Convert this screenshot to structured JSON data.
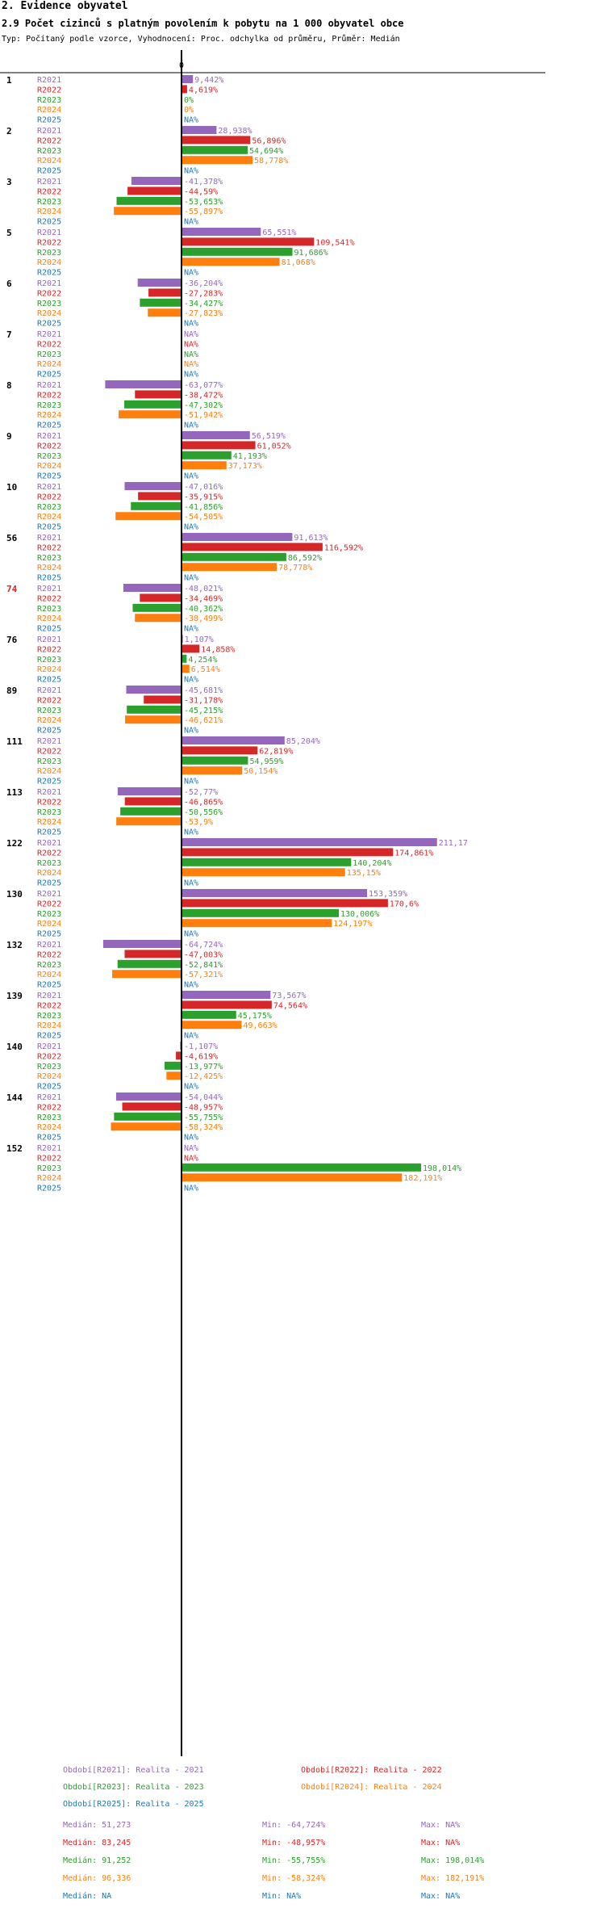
{
  "header": {
    "section": "2. Evidence obyvatel",
    "title": "2.9 Počet cizinců s platným povolením k pobytu na 1 000 obyvatel obce",
    "subtitle": "Typ: Počítaný podle vzorce, Vyhodnocení: Proc. odchylka od průměru, Průměr: Medián"
  },
  "colors": {
    "R2021": "#9467bd",
    "R2022": "#d62728",
    "R2023": "#2ca02c",
    "R2024": "#ff7f0e",
    "R2025": "#1f77b4",
    "highlight": "#d62728"
  },
  "chart_data": {
    "type": "bar",
    "orientation": "horizontal",
    "axis_zero_label": "0",
    "xlim": [
      -70,
      215
    ],
    "series_names": [
      "R2021",
      "R2022",
      "R2023",
      "R2024",
      "R2025"
    ],
    "groups": [
      {
        "id": "1",
        "highlight": false,
        "values": [
          9.442,
          4.619,
          0,
          0,
          null
        ],
        "labels": [
          "9,442%",
          "4,619%",
          "0%",
          "0%",
          "NA%"
        ]
      },
      {
        "id": "2",
        "highlight": false,
        "values": [
          28.938,
          56.896,
          54.694,
          58.778,
          null
        ],
        "labels": [
          "28,938%",
          "56,896%",
          "54,694%",
          "58,778%",
          "NA%"
        ]
      },
      {
        "id": "3",
        "highlight": false,
        "values": [
          -41.378,
          -44.59,
          -53.653,
          -55.897,
          null
        ],
        "labels": [
          "-41,378%",
          "-44,59%",
          "-53,653%",
          "-55,897%",
          "NA%"
        ]
      },
      {
        "id": "5",
        "highlight": false,
        "values": [
          65.551,
          109.541,
          91.686,
          81.068,
          null
        ],
        "labels": [
          "65,551%",
          "109,541%",
          "91,686%",
          "81,068%",
          "NA%"
        ]
      },
      {
        "id": "6",
        "highlight": false,
        "values": [
          -36.204,
          -27.283,
          -34.427,
          -27.823,
          null
        ],
        "labels": [
          "-36,204%",
          "-27,283%",
          "-34,427%",
          "-27,823%",
          "NA%"
        ]
      },
      {
        "id": "7",
        "highlight": false,
        "values": [
          null,
          null,
          null,
          null,
          null
        ],
        "labels": [
          "NA%",
          "NA%",
          "NA%",
          "NA%",
          "NA%"
        ]
      },
      {
        "id": "8",
        "highlight": false,
        "values": [
          -63.077,
          -38.472,
          -47.302,
          -51.942,
          null
        ],
        "labels": [
          "-63,077%",
          "-38,472%",
          "-47,302%",
          "-51,942%",
          "NA%"
        ]
      },
      {
        "id": "9",
        "highlight": false,
        "values": [
          56.519,
          61.052,
          41.193,
          37.173,
          null
        ],
        "labels": [
          "56,519%",
          "61,052%",
          "41,193%",
          "37,173%",
          "NA%"
        ]
      },
      {
        "id": "10",
        "highlight": false,
        "values": [
          -47.016,
          -35.915,
          -41.856,
          -54.505,
          null
        ],
        "labels": [
          "-47,016%",
          "-35,915%",
          "-41,856%",
          "-54,505%",
          "NA%"
        ]
      },
      {
        "id": "56",
        "highlight": false,
        "values": [
          91.613,
          116.592,
          86.592,
          78.778,
          null
        ],
        "labels": [
          "91,613%",
          "116,592%",
          "86,592%",
          "78,778%",
          "NA%"
        ]
      },
      {
        "id": "74",
        "highlight": true,
        "values": [
          -48.021,
          -34.469,
          -40.362,
          -38.499,
          null
        ],
        "labels": [
          "-48,021%",
          "-34,469%",
          "-40,362%",
          "-38,499%",
          "NA%"
        ]
      },
      {
        "id": "76",
        "highlight": false,
        "values": [
          1.107,
          14.858,
          4.254,
          6.514,
          null
        ],
        "labels": [
          "1,107%",
          "14,858%",
          "4,254%",
          "6,514%",
          "NA%"
        ]
      },
      {
        "id": "89",
        "highlight": false,
        "values": [
          -45.681,
          -31.178,
          -45.215,
          -46.621,
          null
        ],
        "labels": [
          "-45,681%",
          "-31,178%",
          "-45,215%",
          "-46,621%",
          "NA%"
        ]
      },
      {
        "id": "111",
        "highlight": false,
        "values": [
          85.204,
          62.819,
          54.959,
          50.154,
          null
        ],
        "labels": [
          "85,204%",
          "62,819%",
          "54,959%",
          "50,154%",
          "NA%"
        ]
      },
      {
        "id": "113",
        "highlight": false,
        "values": [
          -52.77,
          -46.865,
          -50.556,
          -53.9,
          null
        ],
        "labels": [
          "-52,77%",
          "-46,865%",
          "-50,556%",
          "-53,9%",
          "NA%"
        ]
      },
      {
        "id": "122",
        "highlight": false,
        "values": [
          211.17,
          174.861,
          140.204,
          135.15,
          null
        ],
        "labels": [
          "211,17",
          "174,861%",
          "140,204%",
          "135,15%",
          "NA%"
        ]
      },
      {
        "id": "130",
        "highlight": false,
        "values": [
          153.359,
          170.6,
          130.006,
          124.197,
          null
        ],
        "labels": [
          "153,359%",
          "170,6%",
          "130,006%",
          "124,197%",
          "NA%"
        ]
      },
      {
        "id": "132",
        "highlight": false,
        "values": [
          -64.724,
          -47.003,
          -52.841,
          -57.321,
          null
        ],
        "labels": [
          "-64,724%",
          "-47,003%",
          "-52,841%",
          "-57,321%",
          "NA%"
        ]
      },
      {
        "id": "139",
        "highlight": false,
        "values": [
          73.567,
          74.564,
          45.175,
          49.663,
          null
        ],
        "labels": [
          "73,567%",
          "74,564%",
          "45,175%",
          "49,663%",
          "NA%"
        ]
      },
      {
        "id": "140",
        "highlight": false,
        "values": [
          -1.107,
          -4.619,
          -13.977,
          -12.425,
          null
        ],
        "labels": [
          "-1,107%",
          "-4,619%",
          "-13,977%",
          "-12,425%",
          "NA%"
        ]
      },
      {
        "id": "144",
        "highlight": false,
        "values": [
          -54.044,
          -48.957,
          -55.755,
          -58.324,
          null
        ],
        "labels": [
          "-54,044%",
          "-48,957%",
          "-55,755%",
          "-58,324%",
          "NA%"
        ]
      },
      {
        "id": "152",
        "highlight": false,
        "values": [
          null,
          null,
          198.014,
          182.191,
          null
        ],
        "labels": [
          "NA%",
          "NA%",
          "198,014%",
          "182,191%",
          "NA%"
        ]
      }
    ]
  },
  "legend": {
    "periods": [
      {
        "key": "R2021",
        "text": "Období[R2021]: Realita - 2021"
      },
      {
        "key": "R2022",
        "text": "Období[R2022]: Realita - 2022"
      },
      {
        "key": "R2023",
        "text": "Období[R2023]: Realita - 2023"
      },
      {
        "key": "R2024",
        "text": "Období[R2024]: Realita - 2024"
      },
      {
        "key": "R2025",
        "text": "Období[R2025]: Realita - 2025"
      }
    ],
    "stats": [
      {
        "key": "R2021",
        "median": "Medián: 51,273",
        "min": "Min: -64,724%",
        "max": "Max: NA%"
      },
      {
        "key": "R2022",
        "median": "Medián: 83,245",
        "min": "Min: -48,957%",
        "max": "Max: NA%"
      },
      {
        "key": "R2023",
        "median": "Medián: 91,252",
        "min": "Min: -55,755%",
        "max": "Max: 198,014%"
      },
      {
        "key": "R2024",
        "median": "Medián: 96,336",
        "min": "Min: -58,324%",
        "max": "Max: 182,191%"
      },
      {
        "key": "R2025",
        "median": "Medián: NA",
        "min": "Min: NA%",
        "max": "Max: NA%"
      }
    ]
  }
}
